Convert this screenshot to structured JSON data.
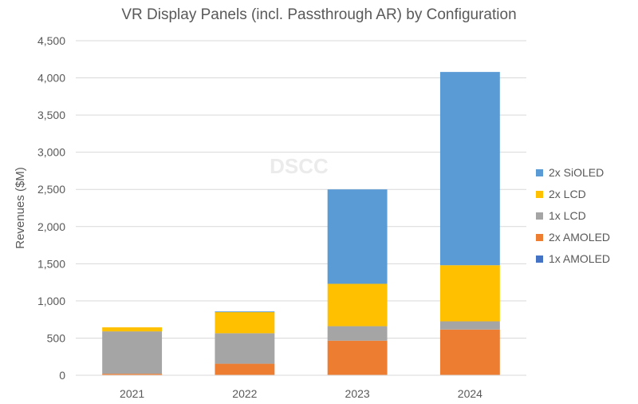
{
  "chart_data": {
    "type": "bar",
    "stacked": true,
    "title": "VR Display Panels (incl. Passthrough AR) by Configuration",
    "xlabel": "",
    "ylabel": "Revenues ($M)",
    "ylim": [
      0,
      4500
    ],
    "ytick_step": 500,
    "ytick_labels": [
      "0",
      "500",
      "1,000",
      "1,500",
      "2,000",
      "2,500",
      "3,000",
      "3,500",
      "4,000",
      "4,500"
    ],
    "categories": [
      "2021",
      "2022",
      "2023",
      "2024"
    ],
    "grid": true,
    "legend_position": "right",
    "watermark": "DSCC",
    "series": [
      {
        "name": "1x AMOLED",
        "color": "#4472C4",
        "values": [
          5,
          5,
          5,
          5
        ]
      },
      {
        "name": "2x AMOLED",
        "color": "#ED7D31",
        "values": [
          15,
          150,
          460,
          610
        ]
      },
      {
        "name": "1x LCD",
        "color": "#A5A5A5",
        "values": [
          570,
          410,
          195,
          110
        ]
      },
      {
        "name": "2x LCD",
        "color": "#FFC000",
        "values": [
          55,
          285,
          570,
          755
        ]
      },
      {
        "name": "2x SiOLED",
        "color": "#5B9BD5",
        "values": [
          0,
          10,
          1270,
          2600
        ]
      }
    ]
  }
}
